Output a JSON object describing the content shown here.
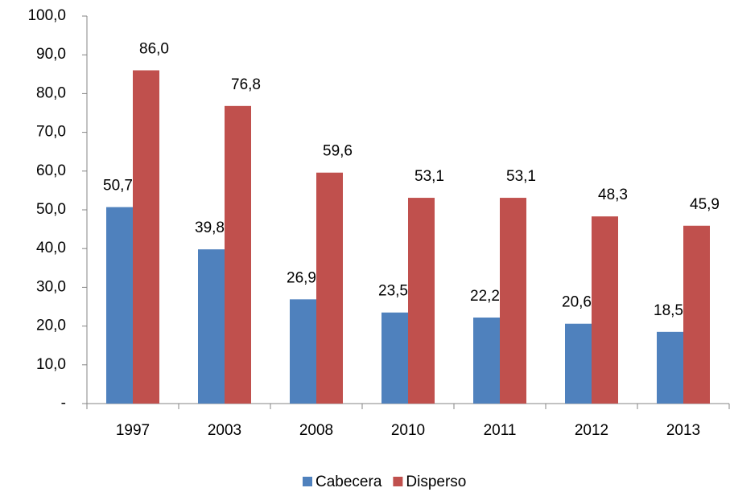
{
  "chart_data": {
    "type": "bar",
    "categories": [
      "1997",
      "2003",
      "2008",
      "2010",
      "2011",
      "2012",
      "2013"
    ],
    "series": [
      {
        "name": "Cabecera",
        "color": "#4f81bd",
        "values": [
          50.7,
          39.8,
          26.9,
          23.5,
          22.2,
          20.6,
          18.5
        ],
        "value_labels": [
          "50,7",
          "39,8",
          "26,9",
          "23,5",
          "22,2",
          "20,6",
          "18,5"
        ]
      },
      {
        "name": "Disperso",
        "color": "#c0504d",
        "values": [
          86.0,
          76.8,
          59.6,
          53.1,
          53.1,
          48.3,
          45.9
        ],
        "value_labels": [
          "86,0",
          "76,8",
          "59,6",
          "53,1",
          "53,1",
          "48,3",
          "45,9"
        ]
      }
    ],
    "ylim": [
      0,
      100
    ],
    "yticks": [
      {
        "value": 0,
        "label": "-"
      },
      {
        "value": 10,
        "label": "10,0"
      },
      {
        "value": 20,
        "label": "20,0"
      },
      {
        "value": 30,
        "label": "30,0"
      },
      {
        "value": 40,
        "label": "40,0"
      },
      {
        "value": 50,
        "label": "50,0"
      },
      {
        "value": 60,
        "label": "60,0"
      },
      {
        "value": 70,
        "label": "70,0"
      },
      {
        "value": 80,
        "label": "80,0"
      },
      {
        "value": 90,
        "label": "90,0"
      },
      {
        "value": 100,
        "label": "100,0"
      }
    ],
    "grid": false,
    "legend": "bottom"
  }
}
